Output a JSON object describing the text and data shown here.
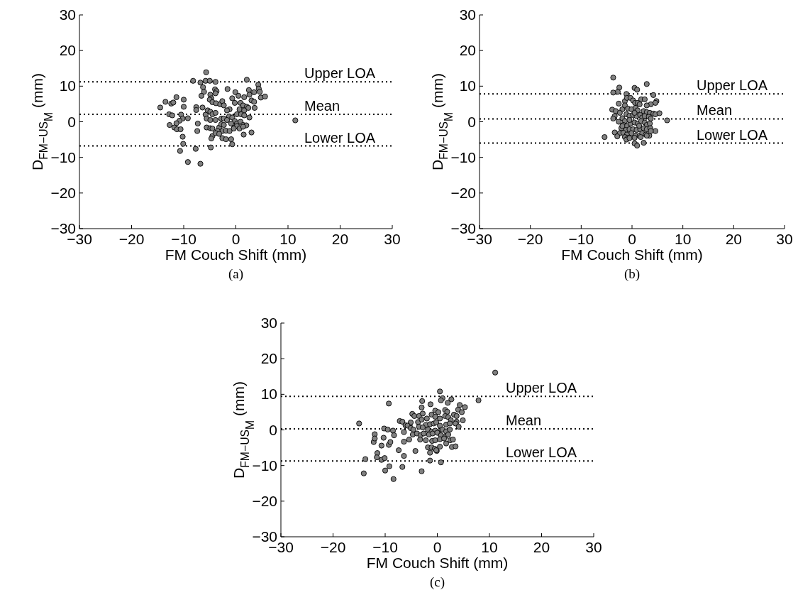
{
  "chart_data": [
    {
      "type": "scatter",
      "xlabel": "FM Couch Shift (mm)",
      "ylabel": "D$_{FM−US}$$_{M}$ (mm)",
      "annotations": [
        "(a)"
      ],
      "xlim": [
        -30,
        30
      ],
      "ylim": [
        -30,
        30
      ],
      "xticks": [
        -30,
        -20,
        -10,
        0,
        10,
        20,
        30
      ],
      "yticks": [
        -30,
        -20,
        -10,
        0,
        10,
        20,
        30
      ],
      "grid": false,
      "marker": "circle",
      "ref_lines": [
        {
          "axis": "y",
          "value": 11.2,
          "label": "Upper LOA",
          "line_style": "dotted"
        },
        {
          "axis": "y",
          "value": 2.1,
          "label": "Mean",
          "line_style": "dotted"
        },
        {
          "axis": "y",
          "value": -6.8,
          "label": "Lower LOA",
          "line_style": "dotted"
        }
      ],
      "series": [
        {
          "color": "#808080",
          "x": [
            -5.7,
            -8.2,
            -6.8,
            -5.8,
            -5.0,
            -3.9,
            2.1,
            -6.3,
            -6.1,
            -6.6,
            -4.0,
            -3.7,
            -3.9,
            -1.6,
            -0.1,
            2.5,
            3.5,
            4.3,
            4.4,
            4.6,
            -11.4,
            -10.0,
            -13.5,
            -12.4,
            -12.0,
            -14.5,
            -10.0,
            -7.6,
            -7.6,
            -6.4,
            -4.9,
            -4.7,
            -5.0,
            -4.5,
            -3.8,
            -3.0,
            -2.6,
            -2.3,
            -0.7,
            0.5,
            1.6,
            2.6,
            3.0,
            3.5,
            4.8,
            5.6,
            -0.2,
            0.9,
            1.4,
            2.1,
            3.6,
            -1.2,
            0.7,
            1.6,
            2.4,
            0.2,
            1.0,
            1.6,
            2.6,
            -12.8,
            -12.2,
            -10.5,
            -10.2,
            -10.8,
            -9.2,
            -5.8,
            -5.4,
            -4.9,
            -4.5,
            -3.9,
            -5.6,
            -4.9,
            -3.9,
            -2.8,
            -2.3,
            -1.7,
            -1.3,
            -0.7,
            -0.2,
            0.2,
            0.9,
            1.4,
            2.0,
            -12.7,
            -11.4,
            -7.3,
            -11.8,
            -11.3,
            -10.6,
            -7.4,
            -5.6,
            -4.9,
            -4.5,
            -3.2,
            -2.8,
            -2.3,
            -1.7,
            -0.9,
            -0.3,
            0.2,
            0.7,
            1.4,
            -2.6,
            -1.9,
            -1.2,
            -3.5,
            -0.4,
            3.0,
            1.5,
            -10.2,
            -4.5,
            -4.7,
            -3.9,
            -3.2,
            -2.6,
            -1.9,
            -0.9,
            -10.1,
            -7.7,
            -10.7,
            -4.8,
            -0.7,
            -9.2,
            -6.8,
            11.4
          ],
          "values": [
            13.9,
            11.5,
            11.0,
            11.5,
            11.5,
            11.2,
            11.8,
            9.7,
            8.4,
            7.3,
            9.1,
            8.6,
            8.0,
            9.2,
            8.3,
            8.9,
            8.3,
            10.4,
            9.3,
            8.4,
            6.9,
            6.2,
            5.6,
            5.1,
            5.4,
            4.0,
            4.2,
            4.1,
            3.3,
            4.0,
            7.6,
            6.6,
            6.2,
            5.5,
            5.2,
            4.9,
            5.8,
            4.6,
            6.6,
            7.3,
            6.9,
            7.6,
            6.0,
            5.6,
            6.8,
            7.1,
            5.3,
            5.3,
            4.6,
            4.2,
            3.9,
            3.5,
            3.5,
            3.2,
            3.9,
            2.1,
            2.1,
            1.8,
            1.2,
            2.1,
            1.8,
            2.0,
            0.9,
            0.3,
            1.0,
            2.0,
            3.2,
            2.8,
            2.1,
            2.5,
            0.9,
            0.5,
            0.5,
            0.9,
            0.9,
            3.2,
            1.5,
            1.2,
            0.2,
            -0.5,
            0.0,
            -0.9,
            -1.0,
            -0.9,
            -0.4,
            -0.5,
            -1.6,
            -2.1,
            -2.1,
            -2.6,
            -1.6,
            -1.8,
            -1.9,
            -1.6,
            -0.7,
            -0.9,
            0.5,
            -0.5,
            -1.6,
            -1.2,
            -1.9,
            -1.4,
            -2.6,
            -2.5,
            -2.6,
            -2.6,
            -1.9,
            -3.0,
            -3.6,
            -4.2,
            -4.0,
            -4.7,
            -3.2,
            -3.4,
            -4.6,
            -4.9,
            -4.9,
            -6.2,
            -7.6,
            -8.2,
            -7.2,
            -6.3,
            -11.3,
            -11.8,
            0.4
          ]
        }
      ]
    },
    {
      "type": "scatter",
      "xlabel": "FM Couch Shift (mm)",
      "ylabel": "D$_{FM−US}$$_{M}$ (mm)",
      "annotations": [
        "(b)"
      ],
      "xlim": [
        -30,
        30
      ],
      "ylim": [
        -30,
        30
      ],
      "xticks": [
        -30,
        -20,
        -10,
        0,
        10,
        20,
        30
      ],
      "yticks": [
        -30,
        -20,
        -10,
        0,
        10,
        20,
        30
      ],
      "grid": false,
      "marker": "circle",
      "ref_lines": [
        {
          "axis": "y",
          "value": 7.8,
          "label": "Upper LOA",
          "line_style": "dotted"
        },
        {
          "axis": "y",
          "value": 0.8,
          "label": "Mean",
          "line_style": "dotted"
        },
        {
          "axis": "y",
          "value": -6.0,
          "label": "Lower LOA",
          "line_style": "dotted"
        }
      ],
      "series": [
        {
          "color": "#808080",
          "x": [
            -3.7,
            2.9,
            -2.5,
            0.5,
            1.0,
            -2.8,
            -3.7,
            -1.1,
            4.2,
            4.8,
            4.6,
            3.7,
            2.9,
            1.8,
            2.5,
            -2.6,
            -1.4,
            -1.0,
            -0.3,
            0.2,
            0.6,
            1.1,
            1.5,
            -1.9,
            -1.4,
            -3.9,
            -3.2,
            -0.8,
            -0.1,
            0.7,
            1.1,
            2.3,
            2.9,
            3.5,
            4.2,
            4.6,
            5.4,
            6.9,
            -3.4,
            -3.7,
            -2.6,
            -1.9,
            -1.4,
            -1.1,
            -0.5,
            0.2,
            0.9,
            1.6,
            2.0,
            2.5,
            3.3,
            3.7,
            -1.7,
            -1.0,
            -0.3,
            0.5,
            1.1,
            1.8,
            2.5,
            2.9,
            3.5,
            -2.1,
            -1.2,
            -0.5,
            0.2,
            0.9,
            1.6,
            2.3,
            2.9,
            3.6,
            4.6,
            -3.4,
            -2.4,
            -1.7,
            -1.0,
            -0.1,
            0.7,
            1.5,
            2.0,
            2.7,
            3.4,
            -2.9,
            -1.4,
            -0.8,
            0.5,
            1.7,
            -5.4,
            -1.1,
            -0.5,
            0.5,
            1.0,
            2.3,
            2.9,
            -2.4,
            0.5,
            -1.9,
            -0.5,
            1.4,
            3.7
          ],
          "values": [
            12.4,
            10.6,
            9.6,
            9.5,
            9.0,
            8.4,
            8.2,
            7.8,
            7.5,
            5.8,
            5.3,
            4.9,
            4.6,
            6.3,
            6.3,
            5.1,
            5.8,
            6.7,
            6.7,
            6.0,
            5.3,
            5.3,
            4.9,
            3.5,
            4.6,
            3.4,
            3.0,
            3.7,
            3.5,
            3.9,
            3.2,
            3.0,
            2.7,
            2.5,
            2.3,
            2.1,
            2.4,
            0.4,
            1.6,
            0.9,
            0.0,
            1.0,
            0.2,
            2.1,
            1.7,
            1.9,
            1.6,
            1.9,
            1.2,
            1.6,
            1.4,
            0.9,
            -0.9,
            -1.2,
            -0.5,
            -0.2,
            -0.5,
            0.2,
            -0.2,
            -0.9,
            -0.5,
            -1.8,
            -2.3,
            -2.1,
            -2.1,
            -2.3,
            -2.1,
            -1.8,
            -2.1,
            -1.8,
            -2.6,
            -3.0,
            -3.2,
            -3.1,
            -3.6,
            -3.2,
            -3.9,
            -3.9,
            -3.2,
            -3.6,
            -3.9,
            -4.1,
            -4.3,
            -4.5,
            -4.5,
            -4.3,
            -4.3,
            -5.0,
            -4.6,
            -6.1,
            -6.7,
            -5.9,
            -3.9,
            2.5,
            2.5,
            -1.2,
            0.5,
            -1.1,
            -2.6
          ]
        }
      ]
    },
    {
      "type": "scatter",
      "xlabel": "FM Couch Shift (mm)",
      "ylabel": "D$_{FM−US}$$_{M}$ (mm)",
      "annotations": [
        "(c)"
      ],
      "xlim": [
        -30,
        30
      ],
      "ylim": [
        -30,
        30
      ],
      "xticks": [
        -30,
        -20,
        -10,
        0,
        10,
        20,
        30
      ],
      "yticks": [
        -30,
        -20,
        -10,
        0,
        10,
        20,
        30
      ],
      "grid": false,
      "marker": "circle",
      "ref_lines": [
        {
          "axis": "y",
          "value": 9.4,
          "label": "Upper LOA",
          "line_style": "dotted"
        },
        {
          "axis": "y",
          "value": 0.3,
          "label": "Mean",
          "line_style": "dotted"
        },
        {
          "axis": "y",
          "value": -8.7,
          "label": "Lower LOA",
          "line_style": "dotted"
        }
      ],
      "series": [
        {
          "color": "#808080",
          "x": [
            11.1,
            7.9,
            0.5,
            1.0,
            0.7,
            -2.9,
            -1.3,
            2.7,
            -9.3,
            4.3,
            5.3,
            2.0,
            4.0,
            -3.0,
            -0.4,
            0.2,
            1.5,
            1.9,
            3.2,
            3.7,
            -4.8,
            -4.4,
            -3.5,
            -2.8,
            -2.0,
            -1.1,
            -0.4,
            0.5,
            1.5,
            2.1,
            2.6,
            3.7,
            4.9,
            -15.0,
            -7.2,
            -6.7,
            -6.1,
            -5.3,
            -5.1,
            -3.7,
            -3.0,
            -2.2,
            -1.4,
            -0.7,
            -0.2,
            0.5,
            1.7,
            2.4,
            3.5,
            4.1,
            -10.2,
            -9.5,
            -8.5,
            -8.3,
            -6.4,
            -5.7,
            -5.1,
            -4.6,
            -3.5,
            -2.8,
            -1.8,
            -1.1,
            -0.4,
            0.2,
            1.0,
            1.7,
            2.4,
            -4.7,
            -3.9,
            -3.2,
            -2.6,
            -1.6,
            -0.9,
            0.0,
            0.7,
            1.5,
            2.1,
            -12.0,
            -12.2,
            -12.0,
            -10.3,
            -10.7,
            -9.3,
            -9.0,
            -6.4,
            -5.4,
            -3.3,
            -2.2,
            -1.0,
            -0.4,
            0.5,
            1.3,
            1.7,
            2.5,
            3.0,
            2.8,
            3.5,
            -1.8,
            -1.1,
            -0.5,
            0.5,
            -1.4,
            -0.1,
            -7.4,
            -4.2,
            -11.5,
            -11.6,
            -10.7,
            -10.1,
            -6.4,
            -13.8,
            -1.4,
            0.7,
            -9.2,
            -6.7,
            -10.0,
            -3.0,
            -14.1,
            -8.4,
            4.7,
            -0.2
          ],
          "values": [
            16.1,
            8.3,
            10.8,
            8.9,
            8.3,
            8.1,
            7.2,
            8.6,
            7.4,
            7.0,
            6.4,
            7.6,
            5.7,
            6.3,
            5.4,
            5.0,
            5.6,
            5.1,
            4.3,
            3.9,
            4.5,
            3.9,
            3.9,
            4.6,
            3.2,
            4.3,
            3.7,
            3.2,
            3.9,
            3.6,
            2.7,
            2.3,
            2.7,
            1.8,
            2.5,
            2.3,
            1.3,
            1.3,
            2.1,
            2.2,
            2.9,
            1.4,
            1.6,
            1.8,
            2.1,
            1.2,
            1.5,
            1.8,
            1.8,
            0.9,
            0.4,
            0.1,
            -0.2,
            -1.5,
            -0.6,
            1.2,
            0.5,
            0.1,
            0.9,
            0.7,
            0.1,
            -0.5,
            -0.2,
            -0.8,
            0.1,
            -0.4,
            0.1,
            -1.3,
            -1.0,
            -1.5,
            -1.0,
            -1.3,
            -1.0,
            -0.8,
            -1.5,
            -1.9,
            -1.3,
            -1.2,
            -3.4,
            -2.4,
            -2.2,
            -4.4,
            -4.2,
            -3.4,
            -3.3,
            -2.7,
            -2.7,
            -2.9,
            -3.1,
            -2.9,
            -2.6,
            -2.4,
            -3.8,
            -2.9,
            -2.7,
            -4.8,
            -4.6,
            -4.9,
            -4.9,
            -5.3,
            -4.7,
            -6.4,
            -5.9,
            -5.7,
            -5.9,
            -6.5,
            -7.7,
            -8.4,
            -7.9,
            -7.3,
            -8.2,
            -8.6,
            -9.1,
            -10.2,
            -10.4,
            -11.4,
            -11.6,
            -12.2,
            -13.8,
            5.0,
            -5.7
          ]
        }
      ]
    }
  ]
}
